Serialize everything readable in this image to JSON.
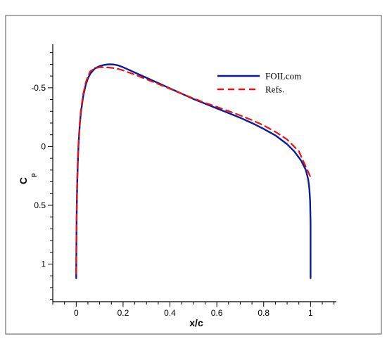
{
  "chart_data": {
    "type": "line",
    "title": "",
    "xlabel": "x/c",
    "ylabel": "C",
    "ylabel_subscript": "p",
    "xlim": [
      -0.1,
      1.11
    ],
    "ylim": [
      -0.87,
      1.32
    ],
    "y_inverted": true,
    "grid": false,
    "legend_position": "top-right",
    "x_ticks": [
      0,
      0.2,
      0.4,
      0.6,
      0.8,
      1
    ],
    "x_tick_labels": [
      "0",
      "0.2",
      "0.4",
      "0.6",
      "0.8",
      "1"
    ],
    "y_ticks": [
      -0.5,
      0,
      0.5,
      1
    ],
    "y_tick_labels": [
      "-0.5",
      "0",
      "0.5",
      "1"
    ],
    "series": [
      {
        "name": "FOILcom",
        "color": "#0a1aa0",
        "style": "solid",
        "x": [
          0.0,
          0.0005,
          0.001,
          0.002,
          0.004,
          0.007,
          0.01,
          0.015,
          0.02,
          0.03,
          0.04,
          0.05,
          0.06,
          0.08,
          0.1,
          0.12,
          0.14,
          0.16,
          0.18,
          0.2,
          0.25,
          0.3,
          0.35,
          0.4,
          0.45,
          0.5,
          0.55,
          0.6,
          0.65,
          0.7,
          0.75,
          0.8,
          0.85,
          0.9,
          0.93,
          0.96,
          0.98,
          0.99,
          0.995,
          0.998,
          1.0,
          1.0
        ],
        "y": [
          1.12,
          0.96,
          0.78,
          0.58,
          0.33,
          0.13,
          -0.02,
          -0.18,
          -0.29,
          -0.43,
          -0.52,
          -0.58,
          -0.62,
          -0.665,
          -0.685,
          -0.695,
          -0.7,
          -0.698,
          -0.69,
          -0.675,
          -0.63,
          -0.585,
          -0.54,
          -0.495,
          -0.45,
          -0.405,
          -0.365,
          -0.325,
          -0.285,
          -0.245,
          -0.2,
          -0.15,
          -0.095,
          -0.02,
          0.04,
          0.12,
          0.2,
          0.28,
          0.36,
          0.46,
          0.65,
          1.12
        ]
      },
      {
        "name": "Refs.",
        "color": "#ee1111",
        "style": "dashed",
        "x": [
          0.0,
          0.0005,
          0.001,
          0.002,
          0.004,
          0.007,
          0.01,
          0.015,
          0.02,
          0.03,
          0.04,
          0.05,
          0.06,
          0.08,
          0.1,
          0.12,
          0.14,
          0.16,
          0.18,
          0.2,
          0.25,
          0.3,
          0.35,
          0.4,
          0.45,
          0.5,
          0.55,
          0.6,
          0.65,
          0.7,
          0.75,
          0.8,
          0.85,
          0.9,
          0.95,
          1.0
        ],
        "y": [
          1.08,
          0.92,
          0.74,
          0.55,
          0.3,
          0.1,
          -0.04,
          -0.2,
          -0.31,
          -0.45,
          -0.54,
          -0.6,
          -0.64,
          -0.665,
          -0.675,
          -0.675,
          -0.672,
          -0.668,
          -0.66,
          -0.648,
          -0.612,
          -0.572,
          -0.532,
          -0.492,
          -0.45,
          -0.41,
          -0.372,
          -0.338,
          -0.302,
          -0.265,
          -0.225,
          -0.18,
          -0.125,
          -0.06,
          0.04,
          0.26
        ]
      }
    ]
  }
}
